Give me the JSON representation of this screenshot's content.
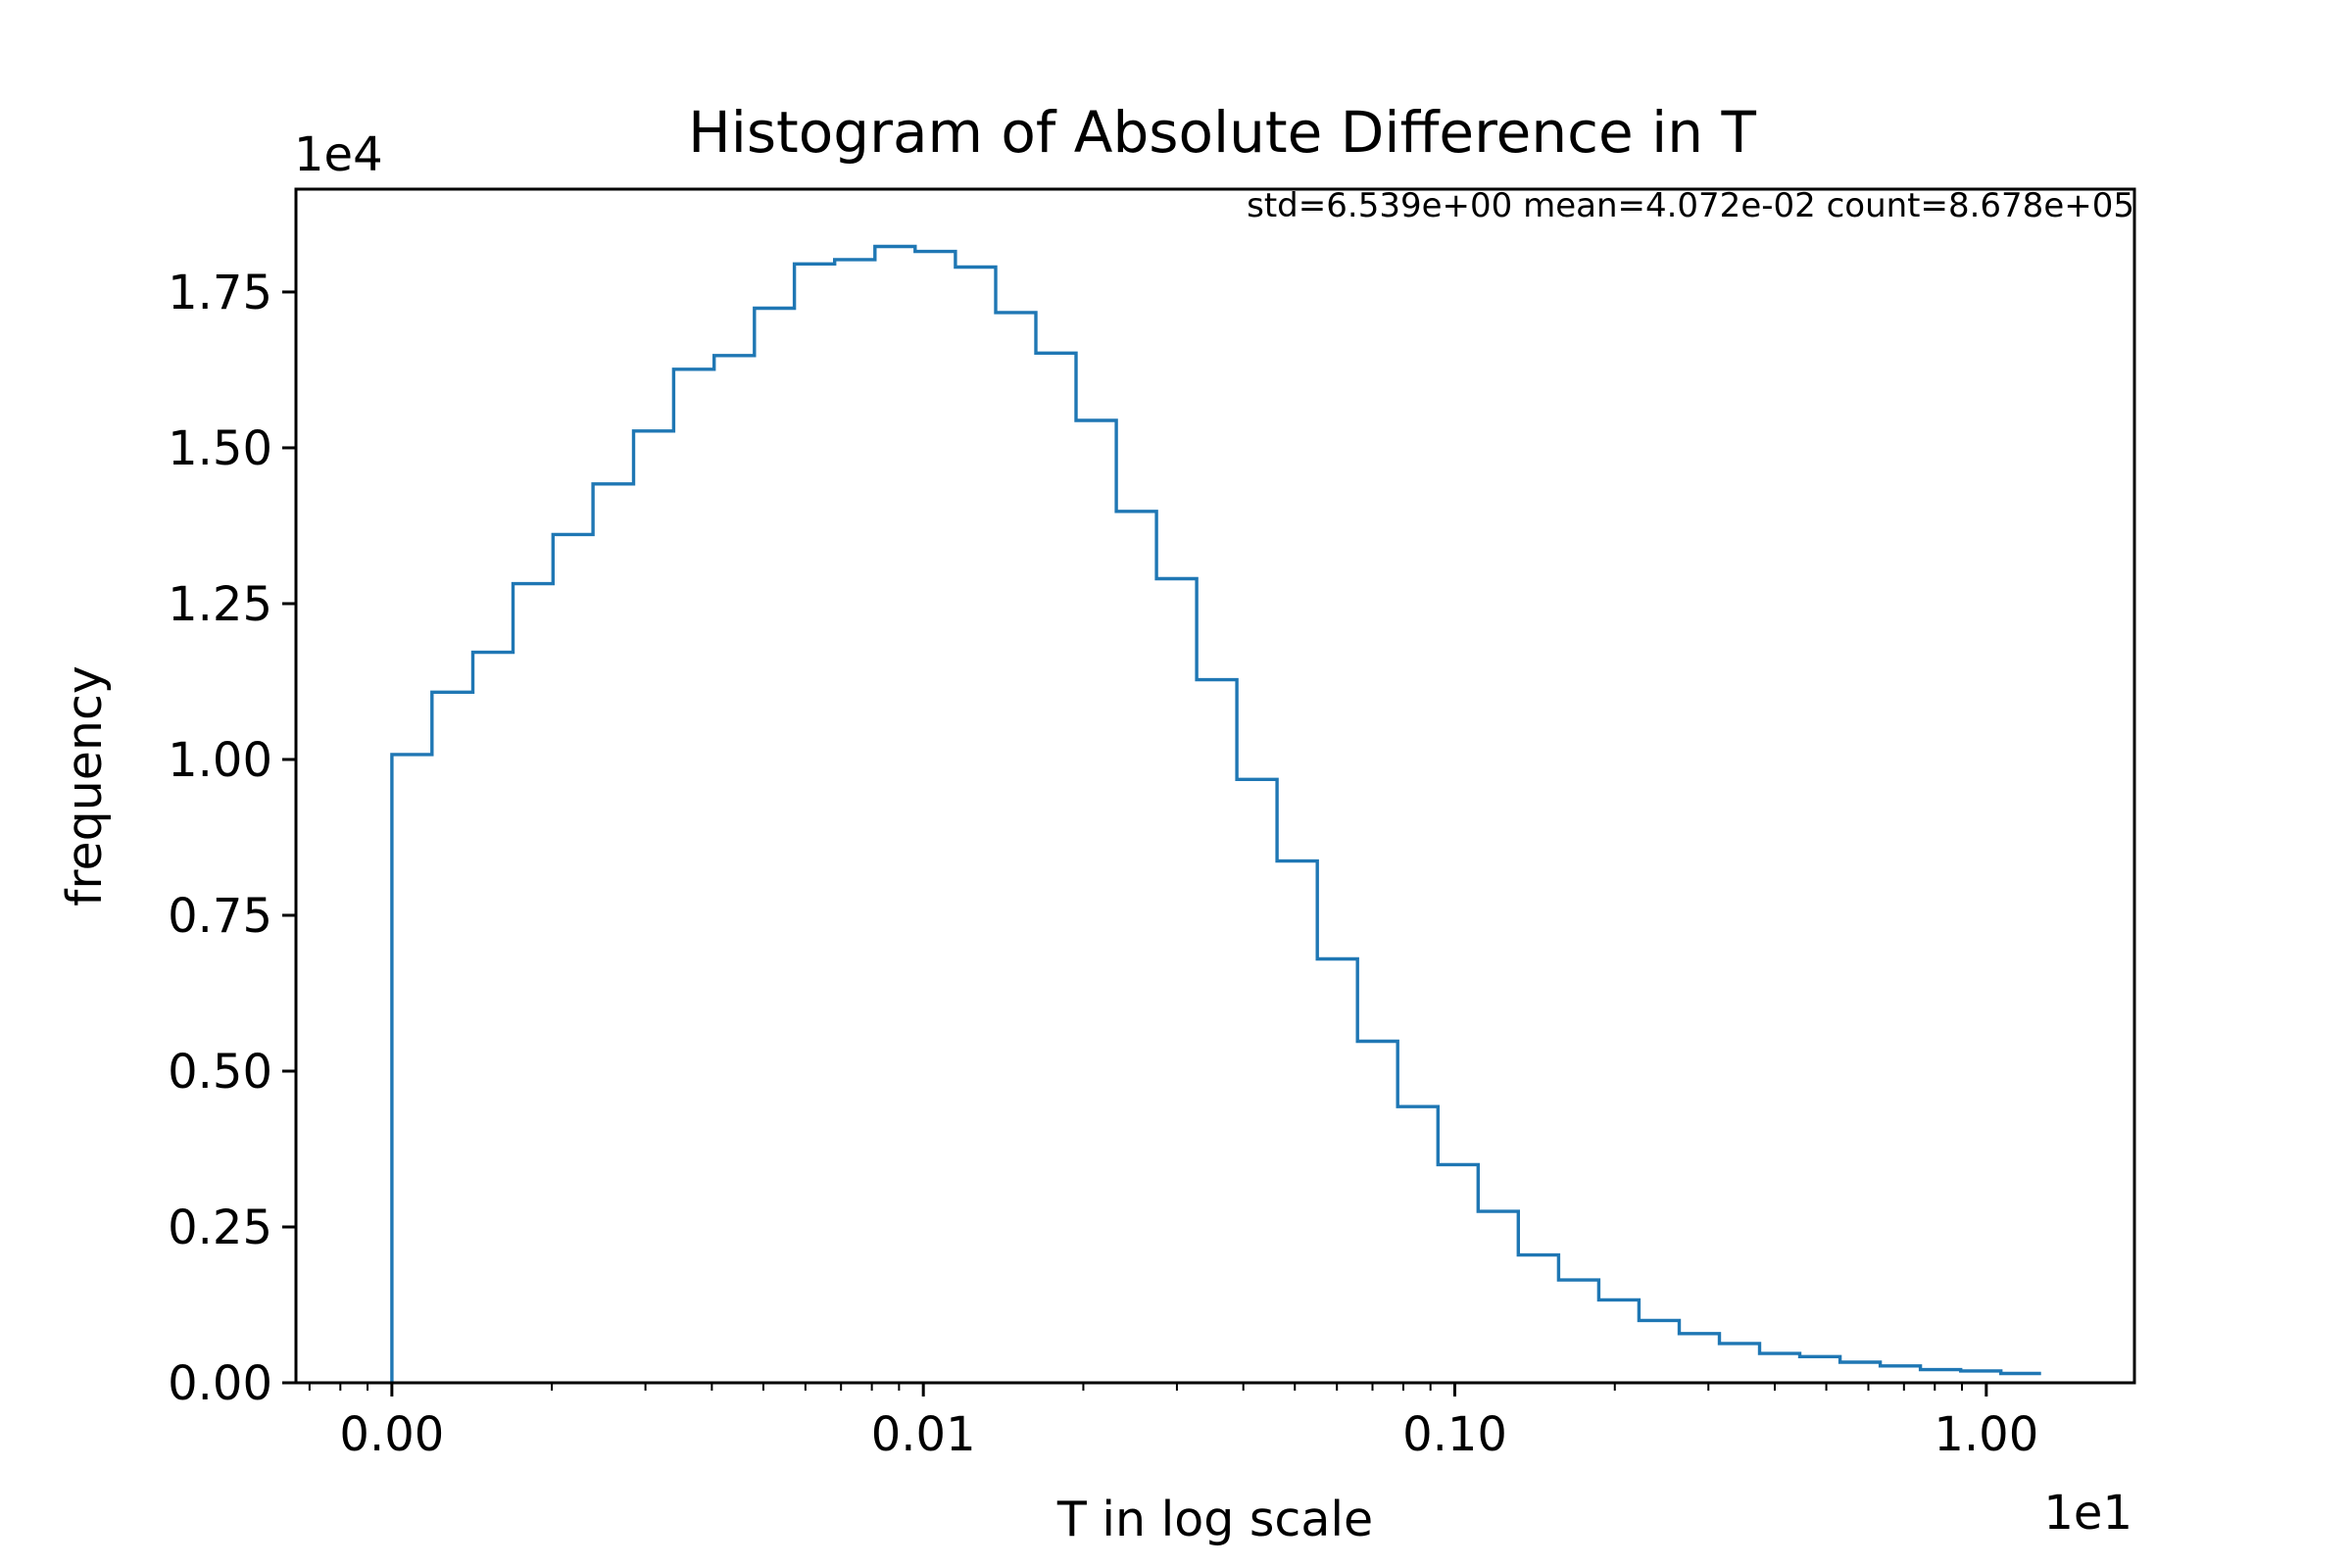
{
  "chart_data": {
    "type": "histogram",
    "title": "Histogram of Absolute Difference in T",
    "xlabel": "T in log scale",
    "ylabel": "frequency",
    "x_scale": "log",
    "x_multiplier_label": "1e1",
    "y_multiplier_label": "1e4",
    "stats_annotation": "std=6.539e+00 mean=4.072e-02 count=8.678e+05",
    "xlim": [
      0.00066,
      1.9
    ],
    "ylim": [
      0,
      1.915
    ],
    "x_ticks": [
      {
        "value": 0.001,
        "label": "0.00"
      },
      {
        "value": 0.01,
        "label": "0.01"
      },
      {
        "value": 0.1,
        "label": "0.10"
      },
      {
        "value": 1.0,
        "label": "1.00"
      }
    ],
    "y_ticks": [
      {
        "value": 0.0,
        "label": "0.00"
      },
      {
        "value": 0.25,
        "label": "0.25"
      },
      {
        "value": 0.5,
        "label": "0.50"
      },
      {
        "value": 0.75,
        "label": "0.75"
      },
      {
        "value": 1.0,
        "label": "1.00"
      },
      {
        "value": 1.25,
        "label": "1.25"
      },
      {
        "value": 1.5,
        "label": "1.50"
      },
      {
        "value": 1.75,
        "label": "1.75"
      }
    ],
    "series": [
      {
        "color": "#1f77b4",
        "bin_edges": [
          0.001,
          0.00119,
          0.00142,
          0.00169,
          0.00201,
          0.00239,
          0.00285,
          0.00339,
          0.00404,
          0.00481,
          0.00572,
          0.00681,
          0.00811,
          0.00965,
          0.01149,
          0.01368,
          0.01628,
          0.01938,
          0.02307,
          0.02746,
          0.03268,
          0.0389,
          0.0463,
          0.05511,
          0.0656,
          0.07808,
          0.09294,
          0.11063,
          0.13168,
          0.15674,
          0.18657,
          0.22208,
          0.26434,
          0.31464,
          0.37452,
          0.44579,
          0.53063,
          0.63161,
          0.7518,
          0.89487,
          1.06517,
          1.26785
        ],
        "values": [
          1.008,
          1.108,
          1.172,
          1.282,
          1.361,
          1.442,
          1.527,
          1.626,
          1.648,
          1.724,
          1.795,
          1.802,
          1.823,
          1.815,
          1.79,
          1.717,
          1.652,
          1.544,
          1.398,
          1.29,
          1.128,
          0.968,
          0.837,
          0.68,
          0.548,
          0.443,
          0.35,
          0.275,
          0.205,
          0.165,
          0.133,
          0.1,
          0.079,
          0.063,
          0.047,
          0.042,
          0.033,
          0.027,
          0.021,
          0.019,
          0.015
        ]
      }
    ]
  }
}
